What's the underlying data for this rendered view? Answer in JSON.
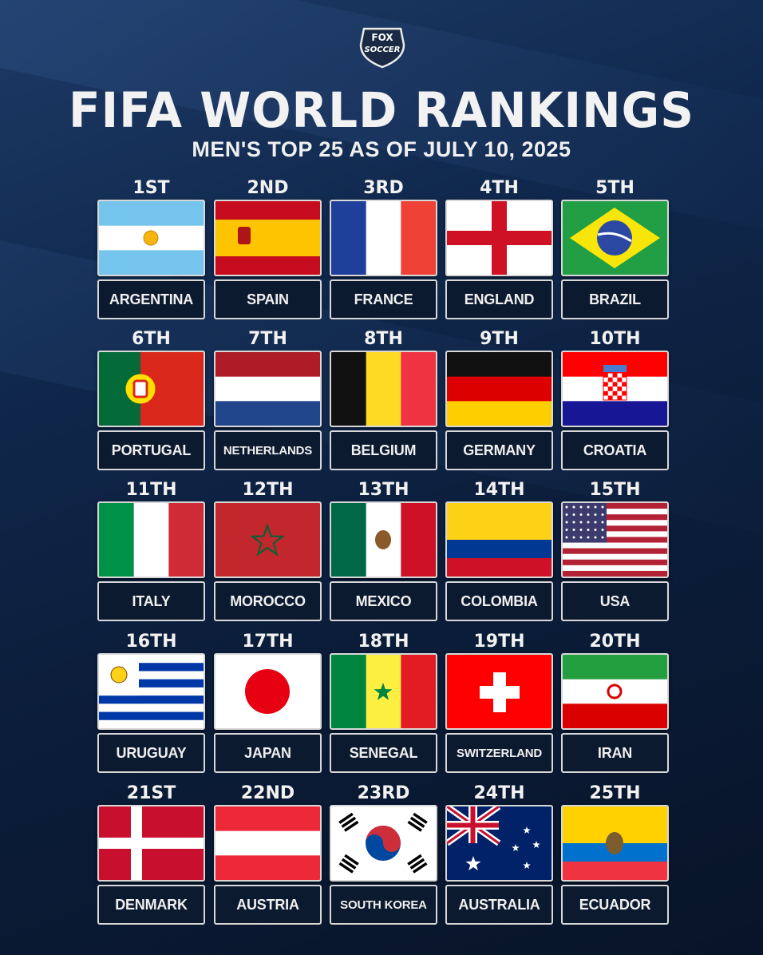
{
  "logo": {
    "line1": "FOX",
    "line2": "SOCCER"
  },
  "title": "FIFA WORLD RANKINGS",
  "subtitle": "MEN'S TOP 25 AS OF JULY 10, 2025",
  "rankings": [
    {
      "rank": "1ST",
      "country": "ARGENTINA",
      "flag": "argentina"
    },
    {
      "rank": "2ND",
      "country": "SPAIN",
      "flag": "spain"
    },
    {
      "rank": "3RD",
      "country": "FRANCE",
      "flag": "france"
    },
    {
      "rank": "4TH",
      "country": "ENGLAND",
      "flag": "england"
    },
    {
      "rank": "5TH",
      "country": "BRAZIL",
      "flag": "brazil"
    },
    {
      "rank": "6TH",
      "country": "PORTUGAL",
      "flag": "portugal"
    },
    {
      "rank": "7TH",
      "country": "NETHERLANDS",
      "flag": "netherlands"
    },
    {
      "rank": "8TH",
      "country": "BELGIUM",
      "flag": "belgium"
    },
    {
      "rank": "9TH",
      "country": "GERMANY",
      "flag": "germany"
    },
    {
      "rank": "10TH",
      "country": "CROATIA",
      "flag": "croatia"
    },
    {
      "rank": "11TH",
      "country": "ITALY",
      "flag": "italy"
    },
    {
      "rank": "12TH",
      "country": "MOROCCO",
      "flag": "morocco"
    },
    {
      "rank": "13TH",
      "country": "MEXICO",
      "flag": "mexico"
    },
    {
      "rank": "14TH",
      "country": "COLOMBIA",
      "flag": "colombia"
    },
    {
      "rank": "15TH",
      "country": "USA",
      "flag": "usa"
    },
    {
      "rank": "16TH",
      "country": "URUGUAY",
      "flag": "uruguay"
    },
    {
      "rank": "17TH",
      "country": "JAPAN",
      "flag": "japan"
    },
    {
      "rank": "18TH",
      "country": "SENEGAL",
      "flag": "senegal"
    },
    {
      "rank": "19TH",
      "country": "SWITZERLAND",
      "flag": "switzerland"
    },
    {
      "rank": "20TH",
      "country": "IRAN",
      "flag": "iran"
    },
    {
      "rank": "21ST",
      "country": "DENMARK",
      "flag": "denmark"
    },
    {
      "rank": "22ND",
      "country": "AUSTRIA",
      "flag": "austria"
    },
    {
      "rank": "23RD",
      "country": "SOUTH KOREA",
      "flag": "south-korea"
    },
    {
      "rank": "24TH",
      "country": "AUSTRALIA",
      "flag": "australia"
    },
    {
      "rank": "25TH",
      "country": "ECUADOR",
      "flag": "ecuador"
    }
  ]
}
